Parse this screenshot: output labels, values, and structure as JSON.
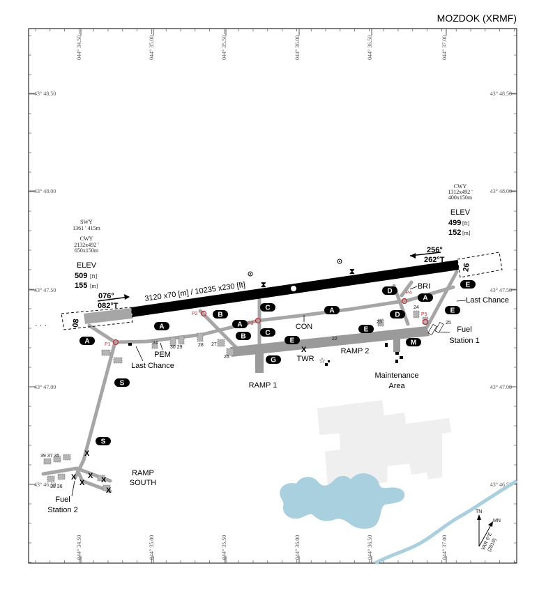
{
  "title": "MOZDOK (XRMF)",
  "lon_ticks": [
    "044° 34.50",
    "044° 35.00",
    "044° 35.50",
    "044° 36.00",
    "044° 36.50",
    "044° 37.00"
  ],
  "lat_ticks": [
    "43° 48.50",
    "43° 48.00",
    "43° 47.50",
    "43° 47.00",
    "43° 46.50"
  ],
  "runway": {
    "dims": "3120 x70 [m] / 10235 x230 [ft]",
    "rwy_west": "08",
    "rwy_east": "26",
    "hdg_west_mag": "076°",
    "hdg_west_true": "082°T",
    "hdg_east_mag": "256°",
    "hdg_east_true": "262°T"
  },
  "west_info": {
    "swy_label": "SWY",
    "swy_dims": "1361 ' 415m",
    "cwy_label": "CWY",
    "cwy_dims_ft": "2132x492 '",
    "cwy_dims_m": "650x150m",
    "elev_label": "ELEV",
    "elev_ft": "509",
    "ft_unit": "[ft]",
    "elev_m": "155",
    "m_unit": "[m]"
  },
  "east_info": {
    "cwy_label": "CWY",
    "cwy_dims_ft": "1312x492 '",
    "cwy_dims_m": "400x150m",
    "elev_label": "ELEV",
    "elev_ft": "499",
    "ft_unit": "[ft]",
    "elev_m": "152",
    "m_unit": "[m]"
  },
  "taxiways": [
    "A",
    "A",
    "A",
    "A",
    "B",
    "B",
    "C",
    "C",
    "D",
    "D",
    "E",
    "E",
    "E",
    "E",
    "G",
    "M",
    "S",
    "S"
  ],
  "hot_spots": [
    "P1",
    "P2",
    "P3",
    "P4",
    "P5"
  ],
  "places": {
    "pem": "PEM",
    "last_chance_w": "Last Chance",
    "last_chance_e": "Last Chance",
    "bri": "BRI",
    "con": "CON",
    "twr": "TWR",
    "ramp1": "RAMP 1",
    "ramp2": "RAMP 2",
    "ramp_south_1": "RAMP",
    "ramp_south_2": "SOUTH",
    "fuel1_a": "Fuel",
    "fuel1_b": "Station 1",
    "fuel2_a": "Fuel",
    "fuel2_b": "Station 2",
    "maint_a": "Maintenance",
    "maint_b": "Area"
  },
  "stands": [
    "31",
    "30 29",
    "28",
    "27",
    "26",
    "22",
    "23",
    "24",
    "25",
    "39 37 35",
    "38 36"
  ],
  "compass": {
    "tn": "TN",
    "mn": "MN",
    "var": "VAR 6°E",
    "year": "(2010)"
  },
  "colors": {
    "runway": "#000000",
    "taxiway": "#a6a6a6",
    "apron": "#9a9a9a",
    "water": "#a9d0de",
    "built_area": "#efefef",
    "hot_spot": "#d0252a",
    "pill": "#000000"
  }
}
